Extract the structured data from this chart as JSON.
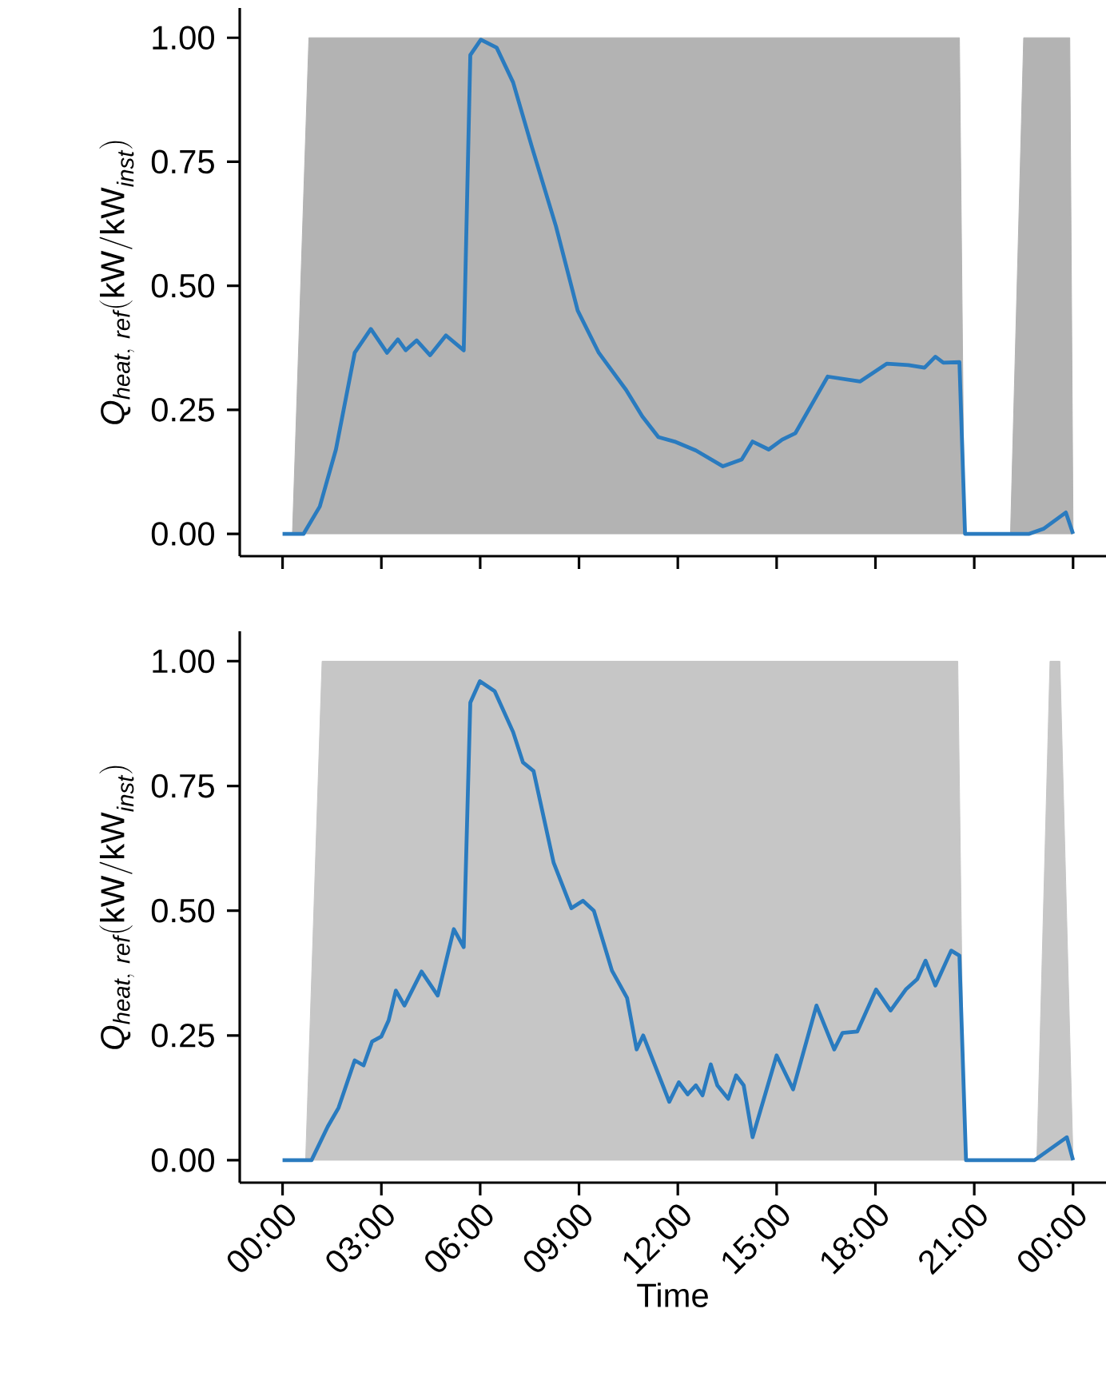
{
  "chart_data": [
    {
      "type": "line",
      "ylabel": "\\mathit{Q}_{\\mathit{heat,\\ ref}}(\\mathrm{kW/kW}_{\\mathit{inst}})",
      "tick_labels": "y",
      "xlim": [
        -1.3,
        25
      ],
      "ylim": [
        -0.045,
        1.06
      ],
      "xticks": [
        {
          "value": 0,
          "label": null
        },
        {
          "value": 3,
          "label": null
        },
        {
          "value": 6,
          "label": null
        },
        {
          "value": 9,
          "label": null
        },
        {
          "value": 12,
          "label": null
        },
        {
          "value": 15,
          "label": null
        },
        {
          "value": 18,
          "label": null
        },
        {
          "value": 21,
          "label": null
        },
        {
          "value": 24,
          "label": null
        }
      ],
      "yticks": [
        {
          "value": 0,
          "label": "0.00"
        },
        {
          "value": 0.25,
          "label": "0.25"
        },
        {
          "value": 0.5,
          "label": "0.50"
        },
        {
          "value": 0.75,
          "label": "0.75"
        },
        {
          "value": 1,
          "label": "1.00"
        }
      ],
      "series": [
        {
          "type": "area",
          "color": "#b3b3b3",
          "x": [
            0.3,
            0.8,
            20.55,
            20.7
          ],
          "values": [
            0,
            1,
            1,
            0
          ]
        },
        {
          "type": "area",
          "color": "#b3b3b3",
          "x": [
            22.1,
            22.5,
            23.9,
            24
          ],
          "values": [
            0,
            1,
            1,
            0
          ]
        },
        {
          "type": "line",
          "color": "#2a7bbf",
          "x": [
            0,
            0.64,
            1.13,
            1.62,
            2.19,
            2.68,
            3.17,
            3.5,
            3.74,
            4.07,
            4.48,
            4.96,
            5.5,
            5.7,
            6.02,
            6.5,
            7.0,
            7.57,
            8.3,
            8.96,
            9.6,
            10.43,
            10.92,
            11.41,
            11.9,
            12.55,
            13.37,
            13.94,
            14.27,
            14.76,
            15.17,
            15.57,
            16.06,
            16.55,
            17.53,
            18.35,
            19.0,
            19.49,
            19.82,
            20.06,
            20.55,
            20.72,
            22.67,
            23.1,
            23.78,
            24
          ],
          "values": [
            0,
            0,
            0.055,
            0.17,
            0.365,
            0.413,
            0.365,
            0.392,
            0.37,
            0.39,
            0.36,
            0.4,
            0.37,
            0.965,
            0.996,
            0.98,
            0.91,
            0.78,
            0.62,
            0.45,
            0.365,
            0.29,
            0.237,
            0.195,
            0.186,
            0.168,
            0.136,
            0.15,
            0.186,
            0.17,
            0.19,
            0.203,
            0.26,
            0.317,
            0.307,
            0.343,
            0.34,
            0.335,
            0.357,
            0.345,
            0.346,
            0,
            0,
            0.01,
            0.043,
            0
          ]
        }
      ]
    },
    {
      "type": "line",
      "ylabel": "\\mathit{Q}_{\\mathit{heat,\\ ref}}(\\mathrm{kW/kW}_{\\mathit{inst}})",
      "xlabel": "Time",
      "xlim": [
        -1.3,
        25
      ],
      "ylim": [
        -0.045,
        1.06
      ],
      "xticks": [
        {
          "value": 0,
          "label": "00:00"
        },
        {
          "value": 3,
          "label": "03:00"
        },
        {
          "value": 6,
          "label": "06:00"
        },
        {
          "value": 9,
          "label": "09:00"
        },
        {
          "value": 12,
          "label": "12:00"
        },
        {
          "value": 15,
          "label": "15:00"
        },
        {
          "value": 18,
          "label": "18:00"
        },
        {
          "value": 21,
          "label": "21:00"
        },
        {
          "value": 24,
          "label": "00:00"
        }
      ],
      "yticks": [
        {
          "value": 0,
          "label": "0.00"
        },
        {
          "value": 0.25,
          "label": "0.25"
        },
        {
          "value": 0.5,
          "label": "0.50"
        },
        {
          "value": 0.75,
          "label": "0.75"
        },
        {
          "value": 1,
          "label": "1.00"
        }
      ],
      "series": [
        {
          "type": "area",
          "color": "#c6c6c6",
          "x": [
            0.7,
            1.2,
            20.5,
            20.7
          ],
          "values": [
            0,
            1,
            1,
            0
          ]
        },
        {
          "type": "area",
          "color": "#c6c6c6",
          "x": [
            22.9,
            23.3,
            23.6,
            24
          ],
          "values": [
            0,
            1,
            1,
            0
          ]
        },
        {
          "type": "line",
          "color": "#2a7bbf",
          "x": [
            0,
            0.88,
            1.37,
            1.7,
            2.19,
            2.46,
            2.72,
            3.0,
            3.22,
            3.44,
            3.7,
            4.22,
            4.71,
            5.2,
            5.5,
            5.7,
            5.99,
            6.44,
            7.0,
            7.3,
            7.62,
            8.23,
            8.77,
            9.12,
            9.45,
            10.0,
            10.46,
            10.75,
            10.95,
            11.74,
            12.03,
            12.3,
            12.55,
            12.75,
            13.0,
            13.2,
            13.53,
            13.77,
            14.0,
            14.27,
            15.0,
            15.5,
            16.21,
            16.75,
            17.0,
            17.45,
            18.02,
            18.46,
            18.92,
            19.27,
            19.52,
            19.82,
            20.3,
            20.55,
            20.75,
            22.83,
            23.81,
            24
          ],
          "values": [
            0,
            0,
            0.067,
            0.105,
            0.2,
            0.19,
            0.238,
            0.248,
            0.28,
            0.34,
            0.31,
            0.378,
            0.33,
            0.463,
            0.427,
            0.917,
            0.96,
            0.94,
            0.858,
            0.797,
            0.78,
            0.596,
            0.505,
            0.52,
            0.5,
            0.38,
            0.325,
            0.222,
            0.25,
            0.117,
            0.156,
            0.132,
            0.15,
            0.13,
            0.192,
            0.15,
            0.123,
            0.17,
            0.15,
            0.046,
            0.21,
            0.142,
            0.31,
            0.222,
            0.255,
            0.258,
            0.342,
            0.3,
            0.342,
            0.363,
            0.4,
            0.35,
            0.42,
            0.41,
            0,
            0,
            0.046,
            0
          ]
        }
      ]
    }
  ]
}
